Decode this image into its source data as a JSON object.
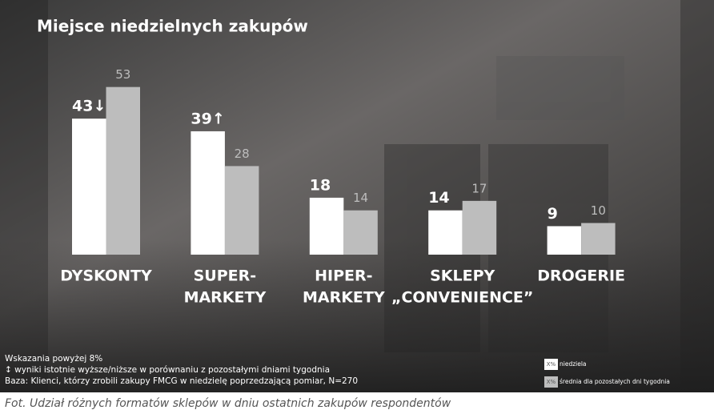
{
  "chart_data": {
    "type": "bar",
    "title": "Miejsce niedzielnych zakupów",
    "categories": [
      [
        "DYSKONTY"
      ],
      [
        "SUPER-",
        "MARKETY"
      ],
      [
        "HIPER-",
        "MARKETY"
      ],
      [
        "SKLEPY",
        "„CONVENIENCE”"
      ],
      [
        "DROGERIE"
      ]
    ],
    "series": [
      {
        "name": "niedziela",
        "color": "#ffffff",
        "values": [
          43,
          39,
          18,
          14,
          9
        ],
        "value_labels": [
          "43↓",
          "39↑",
          "18",
          "14",
          "9"
        ]
      },
      {
        "name": "średnia dla pozostałych dni tygodnia",
        "color": "#bdbdbd",
        "values": [
          53,
          28,
          14,
          17,
          10
        ]
      }
    ],
    "legend_marker_label": "X%",
    "notes": [
      "Wskazania powyżej 8%",
      "↕ wyniki istotnie wyższe/niższe w porównaniu z pozostałymi dniami tygodnia",
      "Baza: Klienci, którzy zrobili zakupy FMCG w niedzielę poprzedzającą pomiar, N=270"
    ],
    "caption": "Fot. Udział różnych formatów sklepów w dniu ostatnich zakupów respondentów"
  }
}
